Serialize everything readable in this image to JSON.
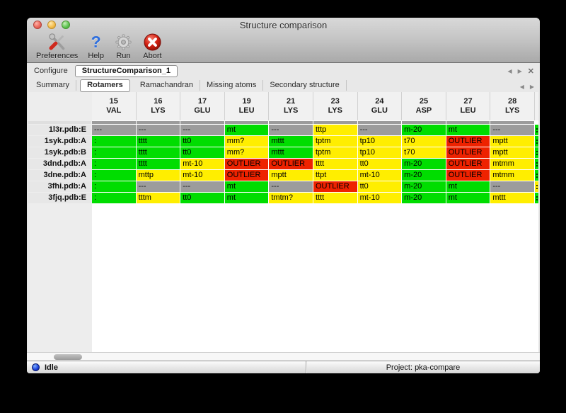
{
  "window": {
    "title": "Structure comparison"
  },
  "toolbar": {
    "buttons": [
      {
        "label": "Preferences",
        "icon": "tools-icon"
      },
      {
        "label": "Help",
        "icon": "question-icon",
        "glyph": "?"
      },
      {
        "label": "Run",
        "icon": "gear-icon"
      },
      {
        "label": "Abort",
        "icon": "abort-icon"
      }
    ]
  },
  "configure": {
    "label": "Configure",
    "value": "StructureComparison_1"
  },
  "pane_controls": {
    "prev": "◀",
    "next": "▶",
    "close": "✕"
  },
  "tabs": [
    {
      "label": "Summary",
      "selected": false
    },
    {
      "label": "Rotamers",
      "selected": true
    },
    {
      "label": "Ramachandran",
      "selected": false
    },
    {
      "label": "Missing atoms",
      "selected": false
    },
    {
      "label": "Secondary structure",
      "selected": false
    }
  ],
  "table": {
    "columns": [
      {
        "num": "15",
        "res": "VAL"
      },
      {
        "num": "16",
        "res": "LYS"
      },
      {
        "num": "17",
        "res": "GLU"
      },
      {
        "num": "19",
        "res": "LEU"
      },
      {
        "num": "21",
        "res": "LYS"
      },
      {
        "num": "23",
        "res": "LYS"
      },
      {
        "num": "24",
        "res": "GLU"
      },
      {
        "num": "25",
        "res": "ASP"
      },
      {
        "num": "27",
        "res": "LEU"
      },
      {
        "num": "28",
        "res": "LYS"
      }
    ],
    "rows": [
      {
        "label": "1l3r.pdb:E",
        "edge_color": "green",
        "cells": [
          {
            "text": "---",
            "color": "gray"
          },
          {
            "text": "---",
            "color": "gray"
          },
          {
            "text": "---",
            "color": "gray"
          },
          {
            "text": "mt",
            "color": "green"
          },
          {
            "text": "---",
            "color": "gray"
          },
          {
            "text": "tttp",
            "color": "yellow"
          },
          {
            "text": "---",
            "color": "gray"
          },
          {
            "text": "m-20",
            "color": "green"
          },
          {
            "text": "mt",
            "color": "green"
          },
          {
            "text": "---",
            "color": "gray"
          }
        ]
      },
      {
        "label": "1syk.pdb:A",
        "edge_color": "green",
        "cells": [
          {
            "text": ":",
            "color": "green"
          },
          {
            "text": "tttt",
            "color": "green"
          },
          {
            "text": "tt0",
            "color": "green"
          },
          {
            "text": "mm?",
            "color": "yellow"
          },
          {
            "text": "mttt",
            "color": "green"
          },
          {
            "text": "tptm",
            "color": "yellow"
          },
          {
            "text": "tp10",
            "color": "yellow"
          },
          {
            "text": "t70",
            "color": "yellow"
          },
          {
            "text": "OUTLIER",
            "color": "red"
          },
          {
            "text": "mptt",
            "color": "yellow"
          }
        ]
      },
      {
        "label": "1syk.pdb:B",
        "edge_color": "green",
        "cells": [
          {
            "text": ":",
            "color": "green"
          },
          {
            "text": "tttt",
            "color": "green"
          },
          {
            "text": "tt0",
            "color": "green"
          },
          {
            "text": "mm?",
            "color": "yellow"
          },
          {
            "text": "mttt",
            "color": "green"
          },
          {
            "text": "tptm",
            "color": "yellow"
          },
          {
            "text": "tp10",
            "color": "yellow"
          },
          {
            "text": "t70",
            "color": "yellow"
          },
          {
            "text": "OUTLIER",
            "color": "red"
          },
          {
            "text": "mptt",
            "color": "yellow"
          }
        ]
      },
      {
        "label": "3dnd.pdb:A",
        "edge_color": "green",
        "cells": [
          {
            "text": ":",
            "color": "green"
          },
          {
            "text": "tttt",
            "color": "green"
          },
          {
            "text": "mt-10",
            "color": "yellow"
          },
          {
            "text": "OUTLIER",
            "color": "red"
          },
          {
            "text": "OUTLIER",
            "color": "red"
          },
          {
            "text": "tttt",
            "color": "yellow"
          },
          {
            "text": "tt0",
            "color": "yellow"
          },
          {
            "text": "m-20",
            "color": "green"
          },
          {
            "text": "OUTLIER",
            "color": "red"
          },
          {
            "text": "mtmm",
            "color": "yellow"
          }
        ]
      },
      {
        "label": "3dne.pdb:A",
        "edge_color": "green",
        "cells": [
          {
            "text": ":",
            "color": "green"
          },
          {
            "text": "mttp",
            "color": "yellow"
          },
          {
            "text": "mt-10",
            "color": "yellow"
          },
          {
            "text": "OUTLIER",
            "color": "red"
          },
          {
            "text": "mptt",
            "color": "yellow"
          },
          {
            "text": "ttpt",
            "color": "yellow"
          },
          {
            "text": "mt-10",
            "color": "yellow"
          },
          {
            "text": "m-20",
            "color": "green"
          },
          {
            "text": "OUTLIER",
            "color": "red"
          },
          {
            "text": "mtmm",
            "color": "yellow"
          }
        ]
      },
      {
        "label": "3fhi.pdb:A",
        "edge_color": "yellow",
        "cells": [
          {
            "text": ":",
            "color": "green"
          },
          {
            "text": "---",
            "color": "gray"
          },
          {
            "text": "---",
            "color": "gray"
          },
          {
            "text": "mt",
            "color": "green"
          },
          {
            "text": "---",
            "color": "gray"
          },
          {
            "text": "OUTLIER",
            "color": "red"
          },
          {
            "text": "tt0",
            "color": "yellow"
          },
          {
            "text": "m-20",
            "color": "green"
          },
          {
            "text": "mt",
            "color": "green"
          },
          {
            "text": "---",
            "color": "gray"
          }
        ]
      },
      {
        "label": "3fjq.pdb:E",
        "edge_color": "green",
        "cells": [
          {
            "text": ":",
            "color": "green"
          },
          {
            "text": "tttm",
            "color": "yellow"
          },
          {
            "text": "tt0",
            "color": "green"
          },
          {
            "text": "mt",
            "color": "green"
          },
          {
            "text": "tmtm?",
            "color": "yellow"
          },
          {
            "text": "tttt",
            "color": "yellow"
          },
          {
            "text": "mt-10",
            "color": "yellow"
          },
          {
            "text": "m-20",
            "color": "green"
          },
          {
            "text": "mt",
            "color": "green"
          },
          {
            "text": "mttt",
            "color": "yellow"
          }
        ]
      }
    ]
  },
  "status_bar": {
    "state": "Idle",
    "project": "Project: pka-compare"
  },
  "colors": {
    "green": "#00dd00",
    "yellow": "#ffee00",
    "red": "#ee2200",
    "gray": "#9c9c9c"
  }
}
